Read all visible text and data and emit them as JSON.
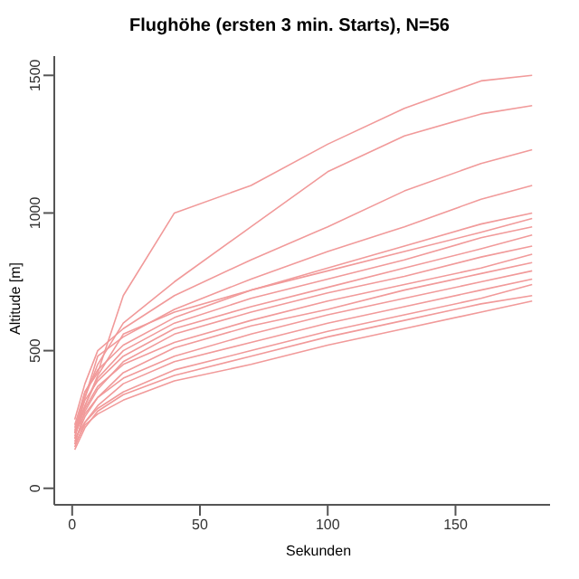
{
  "chart_data": {
    "type": "line",
    "title": "Flughöhe (ersten 3 min. Starts), N=56",
    "xlabel": "Sekunden",
    "ylabel": "Altitude [m]",
    "x": [
      1,
      5,
      10,
      20,
      40,
      70,
      100,
      130,
      160,
      180
    ],
    "series": [
      {
        "color": "#f19a9a",
        "values": [
          200,
          350,
          420,
          700,
          1000,
          1100,
          1250,
          1380,
          1480,
          1500
        ]
      },
      {
        "color": "#f19a9a",
        "values": [
          220,
          330,
          450,
          600,
          750,
          950,
          1150,
          1280,
          1360,
          1390
        ]
      },
      {
        "color": "#f19a9a",
        "values": [
          250,
          380,
          500,
          580,
          700,
          830,
          950,
          1080,
          1180,
          1230
        ]
      },
      {
        "color": "#f19a9a",
        "values": [
          180,
          330,
          480,
          550,
          650,
          760,
          860,
          950,
          1050,
          1100
        ]
      },
      {
        "color": "#f19a9a",
        "values": [
          230,
          350,
          430,
          520,
          620,
          720,
          800,
          880,
          960,
          1000
        ]
      },
      {
        "color": "#f19a9a",
        "values": [
          200,
          300,
          410,
          560,
          640,
          720,
          790,
          860,
          930,
          980
        ]
      },
      {
        "color": "#f19a9a",
        "values": [
          200,
          300,
          400,
          500,
          600,
          690,
          760,
          830,
          910,
          950
        ]
      },
      {
        "color": "#f19a9a",
        "values": [
          210,
          320,
          390,
          480,
          580,
          660,
          730,
          800,
          870,
          920
        ]
      },
      {
        "color": "#f19a9a",
        "values": [
          160,
          280,
          360,
          460,
          560,
          640,
          710,
          770,
          840,
          880
        ]
      },
      {
        "color": "#f19a9a",
        "values": [
          190,
          290,
          370,
          450,
          530,
          610,
          680,
          740,
          800,
          850
        ]
      },
      {
        "color": "#f19a9a",
        "values": [
          170,
          260,
          330,
          420,
          510,
          590,
          650,
          720,
          780,
          820
        ]
      },
      {
        "color": "#f19a9a",
        "values": [
          200,
          270,
          330,
          400,
          480,
          560,
          630,
          690,
          750,
          790
        ]
      },
      {
        "color": "#f19a9a",
        "values": [
          150,
          240,
          300,
          380,
          460,
          530,
          600,
          660,
          720,
          760
        ]
      },
      {
        "color": "#f19a9a",
        "values": [
          180,
          240,
          290,
          350,
          430,
          500,
          570,
          630,
          690,
          740
        ]
      },
      {
        "color": "#f19a9a",
        "values": [
          140,
          220,
          280,
          340,
          410,
          480,
          550,
          610,
          670,
          700
        ]
      },
      {
        "color": "#f19a9a",
        "values": [
          160,
          230,
          270,
          320,
          390,
          450,
          520,
          580,
          640,
          680
        ]
      }
    ],
    "xlim": [
      -7,
      187
    ],
    "xticks": [
      0,
      50,
      100,
      150
    ],
    "ylim": [
      -60,
      1570
    ],
    "yticks": [
      0,
      500,
      1000,
      1500
    ],
    "grid": false,
    "legend": false,
    "marker": "none",
    "line_style": "solid"
  }
}
